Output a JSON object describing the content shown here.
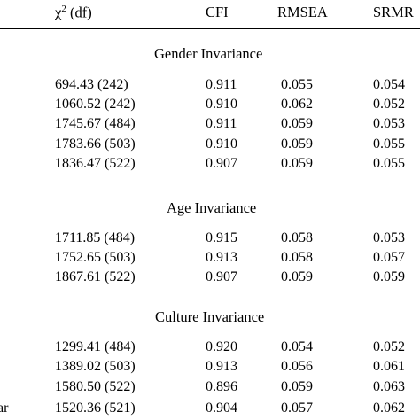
{
  "header": {
    "chi": "χ",
    "chi_sup": "2",
    "chi_df": " (df)",
    "cfi": "CFI",
    "rmsea": "RMSEA",
    "srmr": "SRMR"
  },
  "sections": [
    {
      "title": "Gender Invariance",
      "rows": [
        {
          "chi": "694.43 (242)",
          "cfi": "0.911",
          "rmsea": "0.055",
          "srmr": "0.054"
        },
        {
          "chi": "1060.52 (242)",
          "cfi": "0.910",
          "rmsea": "0.062",
          "srmr": "0.052"
        },
        {
          "chi": "1745.67 (484)",
          "cfi": "0.911",
          "rmsea": "0.059",
          "srmr": "0.053"
        },
        {
          "chi": "1783.66 (503)",
          "cfi": "0.910",
          "rmsea": "0.059",
          "srmr": "0.055"
        },
        {
          "chi": "1836.47 (522)",
          "cfi": "0.907",
          "rmsea": "0.059",
          "srmr": "0.055"
        }
      ]
    },
    {
      "title": "Age Invariance",
      "rows": [
        {
          "chi": "1711.85 (484)",
          "cfi": "0.915",
          "rmsea": "0.058",
          "srmr": "0.053"
        },
        {
          "chi": "1752.65 (503)",
          "cfi": "0.913",
          "rmsea": "0.058",
          "srmr": "0.057"
        },
        {
          "chi": "1867.61 (522)",
          "cfi": "0.907",
          "rmsea": "0.059",
          "srmr": "0.059"
        }
      ]
    },
    {
      "title": "Culture Invariance",
      "rows": [
        {
          "chi": "1299.41 (484)",
          "cfi": "0.920",
          "rmsea": "0.054",
          "srmr": "0.052"
        },
        {
          "chi": "1389.02 (503)",
          "cfi": "0.913",
          "rmsea": "0.056",
          "srmr": "0.061"
        },
        {
          "chi": "1580.50 (522)",
          "cfi": "0.896",
          "rmsea": "0.059",
          "srmr": "0.063"
        },
        {
          "chi": "1520.36 (521)",
          "cfi": "0.904",
          "rmsea": "0.057",
          "srmr": "0.062",
          "left": "ar"
        }
      ]
    }
  ]
}
